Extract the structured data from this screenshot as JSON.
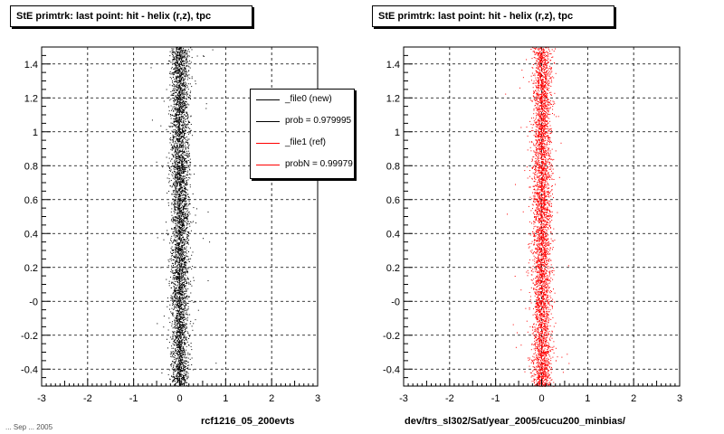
{
  "panels": [
    {
      "title": "StE primtrk: last point: hit - helix (r,z), tpc",
      "xlabel": "rcf1216_05_200evts",
      "color": "#000000",
      "seed": 7
    },
    {
      "title": "StE primtrk: last point: hit - helix (r,z), tpc",
      "xlabel": "dev/trs_sl302/Sat/year_2005/cucu200_minbias/",
      "color": "#ff0000",
      "seed": 13
    }
  ],
  "legend": {
    "entries": [
      {
        "label": "_file0 (new)",
        "color": "#000000"
      },
      {
        "label": "prob = 0.979995",
        "color": "#000000"
      },
      {
        "label": "_file1 (ref)",
        "color": "#ff0000"
      },
      {
        "label": "probN = 0.99979",
        "color": "#ff0000"
      }
    ]
  },
  "timestamp": "... Sep ... 2005",
  "chart_data": [
    {
      "type": "scatter",
      "title": "StE primtrk: last point: hit - helix (r,z), tpc",
      "xlabel": "rcf1216_05_200evts",
      "ylabel": "",
      "xlim": [
        -3,
        3
      ],
      "ylim": [
        -0.5,
        1.5
      ],
      "x_ticks": [
        "-3",
        "-2",
        "-1",
        "0",
        "1",
        "2",
        "3"
      ],
      "y_ticks": [
        "-0.4",
        "-0.2",
        "-0",
        "0.2",
        "0.4",
        "0.6",
        "0.8",
        "1",
        "1.2",
        "1.4"
      ],
      "grid": true,
      "series": [
        {
          "name": "_file0 (new)",
          "color": "#000000",
          "x_center": 0.0,
          "x_spread": 0.1
        }
      ]
    },
    {
      "type": "scatter",
      "title": "StE primtrk: last point: hit - helix (r,z), tpc",
      "xlabel": "dev/trs_sl302/Sat/year_2005/cucu200_minbias/",
      "ylabel": "",
      "xlim": [
        -3,
        3
      ],
      "ylim": [
        -0.5,
        1.5
      ],
      "x_ticks": [
        "-3",
        "-2",
        "-1",
        "0",
        "1",
        "2",
        "3"
      ],
      "y_ticks": [
        "-0.4",
        "-0.2",
        "-0",
        "0.2",
        "0.4",
        "0.6",
        "0.8",
        "1",
        "1.2",
        "1.4"
      ],
      "grid": true,
      "series": [
        {
          "name": "_file1 (ref)",
          "color": "#ff0000",
          "x_center": 0.0,
          "x_spread": 0.1
        }
      ]
    }
  ]
}
